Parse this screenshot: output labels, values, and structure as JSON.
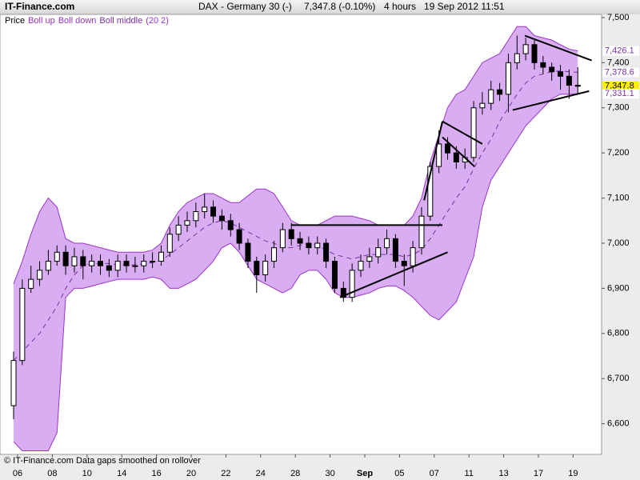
{
  "chart_data": {
    "type": "candlestick",
    "source": "IT-Finance.com",
    "title": "DAX - Germany 30 (-)",
    "price_change": "7,347.8 (-0.10%)",
    "interval": "4 hours",
    "timestamp": "19 Sep 2012 11:51",
    "footer": "© IT-Finance.com  Data gaps smoothed on rollover",
    "indicator_params": "(20 2)",
    "categories": [
      "06",
      null,
      null,
      null,
      "08",
      null,
      null,
      null,
      "10",
      null,
      null,
      null,
      "14",
      null,
      null,
      null,
      "16",
      null,
      null,
      null,
      "20",
      null,
      null,
      null,
      "22",
      null,
      null,
      null,
      "24",
      null,
      null,
      null,
      "28",
      null,
      null,
      null,
      "30",
      null,
      null,
      null,
      "Sep",
      null,
      null,
      null,
      "05",
      null,
      null,
      null,
      "07",
      null,
      null,
      null,
      "11",
      null,
      null,
      null,
      "13",
      null,
      null,
      null,
      "17",
      null,
      null,
      null,
      "19",
      null
    ],
    "series": [
      {
        "name": "Price",
        "color": "#000000",
        "open": [
          6640,
          6740,
          6900,
          6920,
          6940,
          6960,
          6980,
          6950,
          6970,
          6950,
          6960,
          6950,
          6940,
          6960,
          6950,
          6950,
          6960,
          6960,
          6980,
          7020,
          7040,
          7050,
          7070,
          7080,
          7060,
          7050,
          7030,
          7000,
          6960,
          6930,
          6960,
          6990,
          7030,
          7010,
          7000,
          6990,
          7000,
          6960,
          6900,
          6880,
          6940,
          6960,
          6970,
          6990,
          7010,
          6960,
          6950,
          6990,
          7060,
          7170,
          7220,
          7200,
          7180,
          7190,
          7300,
          7310,
          7340,
          7330,
          7400,
          7420,
          7440,
          7400,
          7390,
          7380,
          7370,
          7350
        ],
        "high": [
          6760,
          6920,
          6950,
          6960,
          6985,
          6995,
          6995,
          6990,
          6985,
          6975,
          6975,
          6965,
          6975,
          6975,
          6970,
          6975,
          6980,
          6995,
          7035,
          7060,
          7070,
          7090,
          7110,
          7095,
          7075,
          7065,
          7045,
          7010,
          6970,
          6975,
          7005,
          7045,
          7045,
          7025,
          7015,
          7015,
          7010,
          6970,
          6915,
          6955,
          6975,
          6990,
          7010,
          7030,
          7020,
          6975,
          7005,
          7080,
          7180,
          7250,
          7235,
          7215,
          7210,
          7315,
          7335,
          7360,
          7355,
          7420,
          7460,
          7455,
          7450,
          7415,
          7400,
          7395,
          7385,
          7390
        ],
        "low": [
          6610,
          6730,
          6890,
          6905,
          6930,
          6950,
          6930,
          6935,
          6920,
          6935,
          6930,
          6925,
          6925,
          6935,
          6935,
          6935,
          6945,
          6950,
          6970,
          7005,
          7025,
          7035,
          7055,
          7045,
          7030,
          7015,
          6985,
          6945,
          6890,
          6915,
          6945,
          6980,
          6995,
          6985,
          6975,
          6975,
          6945,
          6890,
          6870,
          6870,
          6925,
          6945,
          6955,
          6975,
          6945,
          6905,
          6935,
          6975,
          7050,
          7155,
          7185,
          7165,
          7165,
          7180,
          7285,
          7295,
          7315,
          7290,
          7385,
          7405,
          7385,
          7375,
          7360,
          7340,
          7320,
          7330
        ],
        "close": [
          6740,
          6900,
          6920,
          6940,
          6960,
          6980,
          6950,
          6970,
          6950,
          6960,
          6950,
          6940,
          6960,
          6950,
          6950,
          6960,
          6960,
          6980,
          7020,
          7040,
          7050,
          7070,
          7080,
          7060,
          7050,
          7030,
          7000,
          6960,
          6930,
          6960,
          6990,
          7030,
          7010,
          7000,
          6990,
          7000,
          6960,
          6900,
          6880,
          6940,
          6960,
          6970,
          6990,
          7010,
          6960,
          6950,
          6990,
          7060,
          7170,
          7220,
          7200,
          7180,
          7190,
          7300,
          7310,
          7340,
          7330,
          7400,
          7420,
          7440,
          7400,
          7390,
          7380,
          7370,
          7350,
          7347.8
        ]
      },
      {
        "name": "Boll up",
        "color": "#9a33cc",
        "values": [
          6910,
          6960,
          7020,
          7070,
          7100,
          7080,
          7010,
          7000,
          7000,
          6995,
          6990,
          6985,
          6980,
          6980,
          6980,
          6980,
          6985,
          7000,
          7040,
          7070,
          7090,
          7100,
          7110,
          7110,
          7100,
          7090,
          7090,
          7105,
          7120,
          7120,
          7110,
          7080,
          7050,
          7040,
          7040,
          7040,
          7050,
          7060,
          7060,
          7060,
          7055,
          7050,
          7040,
          7040,
          7040,
          7040,
          7060,
          7100,
          7180,
          7240,
          7300,
          7330,
          7340,
          7370,
          7400,
          7410,
          7420,
          7450,
          7480,
          7480,
          7460,
          7455,
          7450,
          7440,
          7430,
          7426.1
        ]
      },
      {
        "name": "Boll down",
        "color": "#9a33cc",
        "values": [
          6560,
          6540,
          6540,
          6540,
          6540,
          6580,
          6880,
          6900,
          6900,
          6905,
          6910,
          6915,
          6920,
          6920,
          6920,
          6920,
          6925,
          6920,
          6900,
          6900,
          6910,
          6920,
          6940,
          6960,
          6990,
          7000,
          6980,
          6950,
          6920,
          6910,
          6900,
          6890,
          6900,
          6930,
          6940,
          6940,
          6920,
          6890,
          6880,
          6880,
          6885,
          6890,
          6900,
          6905,
          6905,
          6895,
          6880,
          6860,
          6840,
          6830,
          6850,
          6870,
          6920,
          6970,
          7080,
          7140,
          7170,
          7200,
          7230,
          7260,
          7280,
          7300,
          7320,
          7330,
          7330,
          7331.1
        ]
      },
      {
        "name": "Boll middle",
        "color": "#7a2fa8",
        "values": [
          6740,
          6760,
          6780,
          6800,
          6830,
          6860,
          6900,
          6930,
          6950,
          6955,
          6955,
          6955,
          6952,
          6952,
          6952,
          6954,
          6957,
          6962,
          6975,
          6990,
          7005,
          7020,
          7035,
          7045,
          7050,
          7045,
          7035,
          7025,
          7015,
          7005,
          7000,
          6990,
          6990,
          6995,
          7000,
          6995,
          6985,
          6975,
          6970,
          6965,
          6970,
          6975,
          6975,
          6975,
          6975,
          6970,
          6975,
          6985,
          7010,
          7040,
          7070,
          7100,
          7125,
          7165,
          7200,
          7230,
          7270,
          7300,
          7330,
          7355,
          7370,
          7375,
          7380,
          7382,
          7380,
          7378.6
        ]
      }
    ],
    "band_fill": "#d9adf2",
    "trendlines": [
      {
        "x": [
          32,
          49.4
        ],
        "y": [
          7040,
          7040
        ]
      },
      {
        "x": [
          37.6,
          50
        ],
        "y": [
          6880,
          6980
        ]
      },
      {
        "x": [
          47.3,
          49.4
        ],
        "y": [
          7095,
          7270
        ]
      },
      {
        "x": [
          49.4,
          54
        ],
        "y": [
          7270,
          7220
        ]
      },
      {
        "x": [
          49.4,
          53.1
        ],
        "y": [
          7235,
          7170
        ]
      },
      {
        "x": [
          58.9,
          66.6
        ],
        "y": [
          7460,
          7405
        ]
      },
      {
        "x": [
          57.5,
          66.3
        ],
        "y": [
          7295,
          7337
        ]
      }
    ],
    "price_labels": [
      {
        "value": 7426.1,
        "label": "7,426.1",
        "color": "#7a2fa8",
        "background": "#ffffff"
      },
      {
        "value": 7378.6,
        "label": "7,378.6",
        "color": "#7a2fa8",
        "background": "#ffffff"
      },
      {
        "value": 7347.8,
        "label": "7,347.8",
        "color": "#000000",
        "background": "#ffee00"
      },
      {
        "value": 7331.1,
        "label": "7,331.1",
        "color": "#7a2fa8",
        "background": "#ffffff"
      }
    ],
    "ylim": [
      6532,
      7507
    ],
    "yticks": [
      {
        "value": 6600,
        "label": "6,600"
      },
      {
        "value": 6700,
        "label": "6,700"
      },
      {
        "value": 6800,
        "label": "6,800"
      },
      {
        "value": 6900,
        "label": "6,900"
      },
      {
        "value": 7000,
        "label": "7,000"
      },
      {
        "value": 7100,
        "label": "7,100"
      },
      {
        "value": 7200,
        "label": "7,200"
      },
      {
        "value": 7300,
        "label": "7,300"
      },
      {
        "value": 7400,
        "label": "7,400"
      },
      {
        "value": 7500,
        "label": "7,500"
      }
    ]
  }
}
